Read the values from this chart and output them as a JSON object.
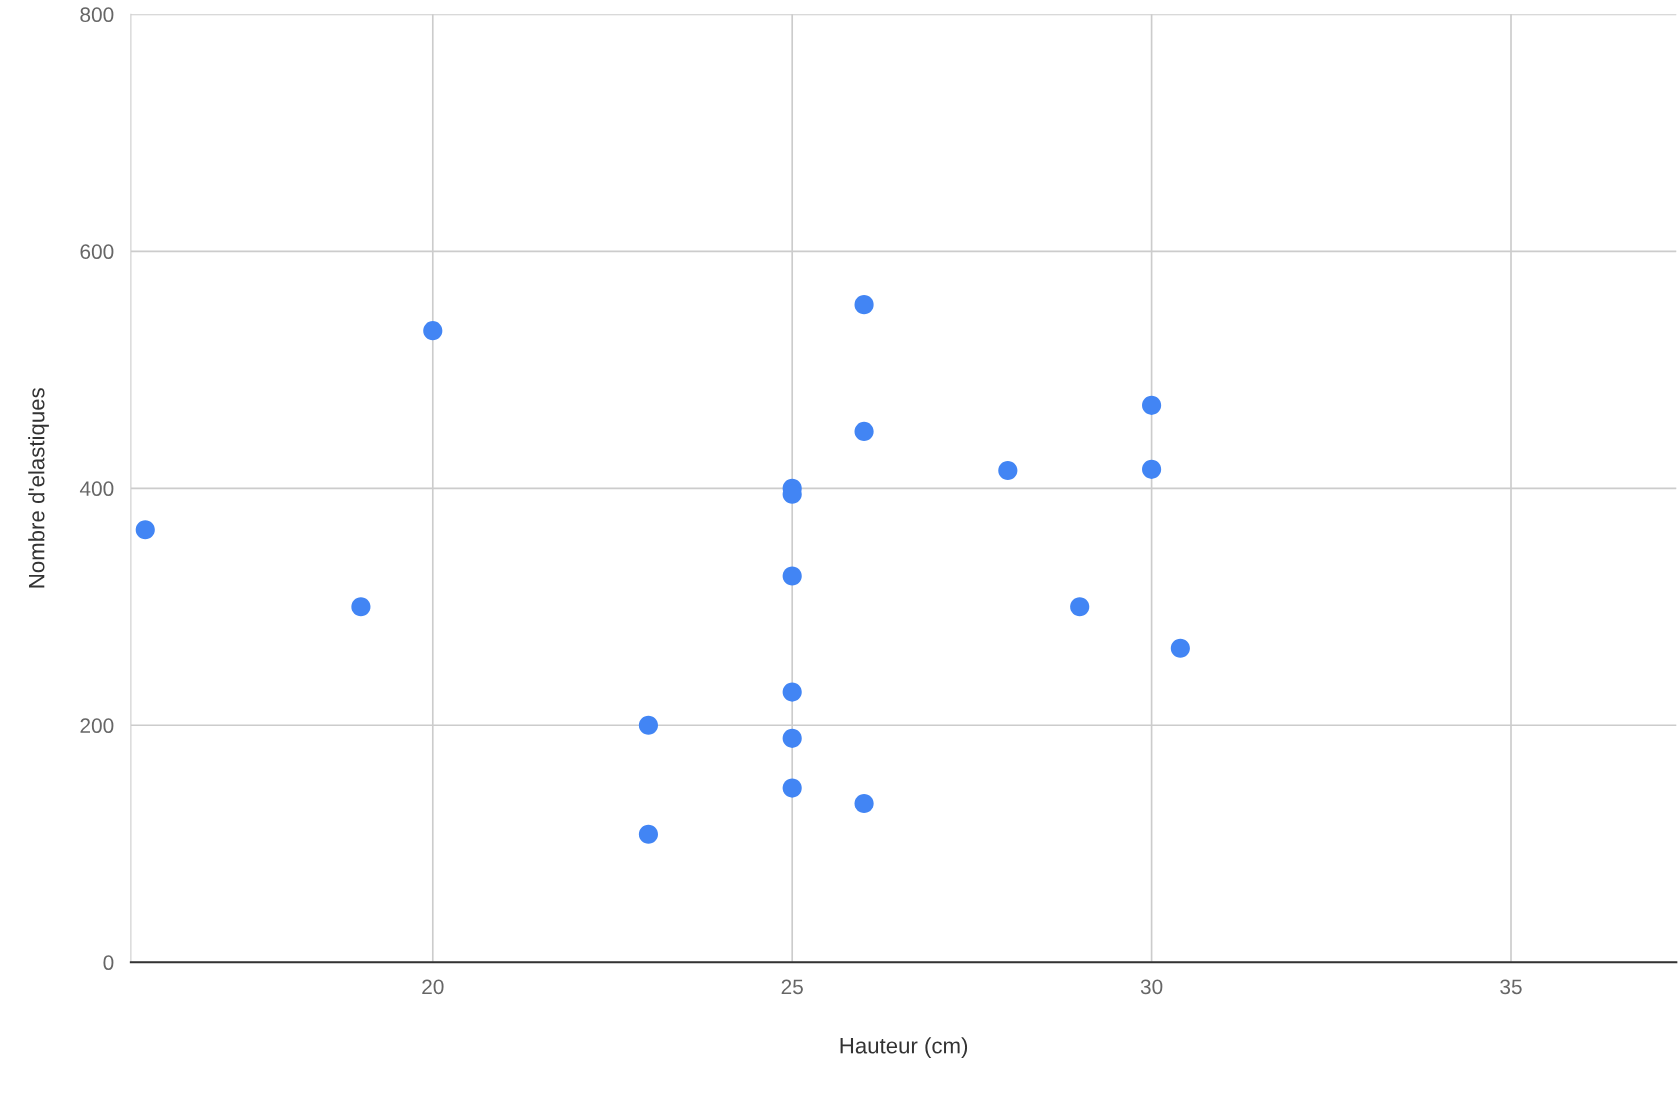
{
  "chart_data": {
    "type": "scatter",
    "xlabel": "Hauteur (cm)",
    "ylabel": "Nombre d'elastiques",
    "x": [
      16,
      19,
      20,
      23,
      23,
      25,
      25,
      25,
      25,
      25,
      25,
      26,
      26,
      26,
      28,
      29,
      30,
      30,
      30.4
    ],
    "series": [
      {
        "color": "#4285f4",
        "values": [
          365,
          300,
          533,
          200,
          108,
          400,
          395,
          326,
          228,
          189,
          147,
          555,
          448,
          134,
          415,
          300,
          470,
          416,
          265
        ]
      }
    ],
    "xlim": [
      15.8,
      37.3
    ],
    "xticks": [
      20,
      25,
      30,
      35
    ],
    "ylim": [
      0,
      800
    ],
    "yticks": [
      0,
      200,
      400,
      600,
      800
    ],
    "grid": true,
    "marker": "circle"
  }
}
